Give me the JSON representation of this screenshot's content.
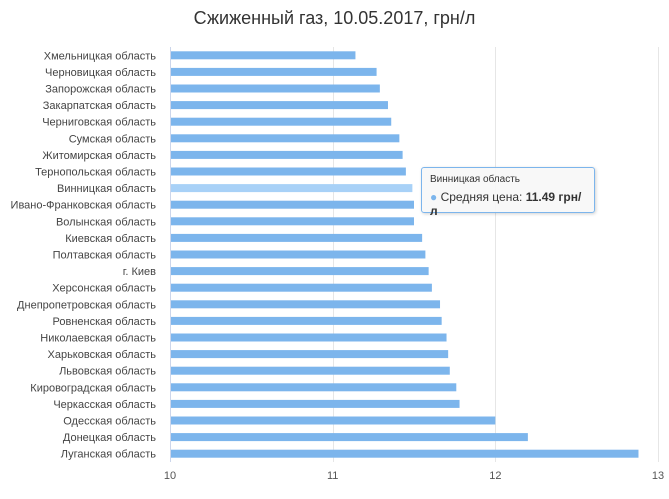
{
  "chart_data": {
    "type": "bar",
    "orientation": "horizontal",
    "title": "Сжиженный газ, 10.05.2017, грн/л",
    "xlim": [
      10,
      13
    ],
    "x_ticks": [
      "10",
      "11",
      "12",
      "13"
    ],
    "grid": true,
    "series": [
      {
        "name": "Средняя цена",
        "color": "#7cb5ec",
        "categories": [
          "Хмельницкая область",
          "Черновицкая область",
          "Запорожская область",
          "Закарпатская область",
          "Черниговская область",
          "Сумская область",
          "Житомирская область",
          "Тернопольская область",
          "Винницкая область",
          "Ивано-Франковская область",
          "Волынская область",
          "Киевская область",
          "Полтавская область",
          "г. Киев",
          "Херсонская область",
          "Днепропетровская область",
          "Ровненская область",
          "Николаевская область",
          "Харьковская область",
          "Львовская область",
          "Кировоградская область",
          "Черкасская область",
          "Одесская область",
          "Донецкая область",
          "Луганская область"
        ],
        "values": [
          11.14,
          11.27,
          11.29,
          11.34,
          11.36,
          11.41,
          11.43,
          11.45,
          11.49,
          11.5,
          11.5,
          11.55,
          11.57,
          11.59,
          11.61,
          11.66,
          11.67,
          11.7,
          11.71,
          11.72,
          11.76,
          11.78,
          12.0,
          12.2,
          12.88
        ]
      }
    ]
  },
  "tooltip": {
    "header": "Винницкая область",
    "series_label": "Средняя цена:",
    "value_text": "11.49 грн/л",
    "category_index": 8
  }
}
